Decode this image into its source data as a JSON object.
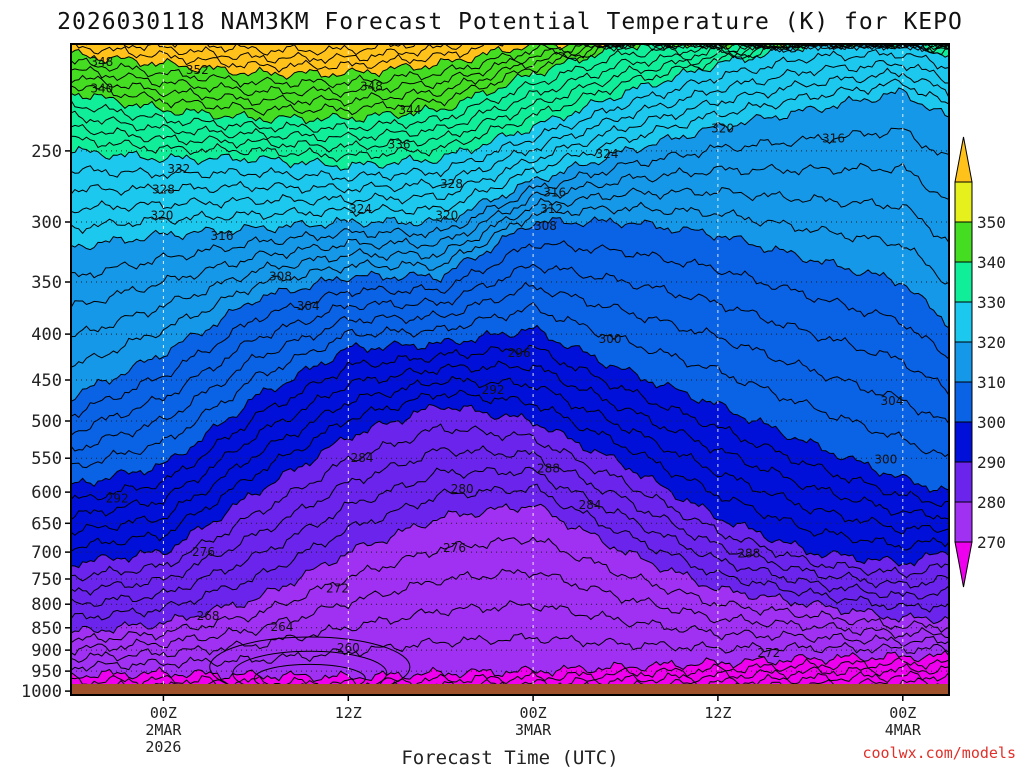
{
  "chart_data": {
    "type": "heatmap",
    "title": "2026030118 NAM3KM Forecast Potential Temperature (K) for KEPO",
    "xlabel": "Forecast Time (UTC)",
    "ylabel": "",
    "credit": "coolwx.com/models",
    "y_axis": {
      "units": "hPa",
      "range": [
        1010,
        190
      ],
      "ticks": [
        1000,
        950,
        900,
        850,
        800,
        750,
        700,
        650,
        600,
        550,
        500,
        450,
        400,
        350,
        300,
        250
      ],
      "tick_labels": [
        "1000",
        "950",
        "900",
        "850",
        "800",
        "750",
        "700",
        "650",
        "600",
        "550",
        "500",
        "450",
        "400",
        "350",
        "300",
        "250"
      ]
    },
    "x_axis": {
      "units": "hours since 2026-03-01 18Z",
      "range": [
        0,
        57
      ],
      "ticks": [
        6,
        18,
        30,
        42,
        54
      ],
      "tick_labels": [
        [
          "00Z",
          "2MAR",
          "2026"
        ],
        [
          "12Z"
        ],
        [
          "00Z",
          "3MAR"
        ],
        [
          "12Z"
        ],
        [
          "00Z",
          "4MAR"
        ]
      ]
    },
    "colorbar": {
      "levels": [
        270,
        280,
        290,
        300,
        310,
        320,
        330,
        340,
        350
      ],
      "labels": [
        "270",
        "280",
        "290",
        "300",
        "310",
        "320",
        "330",
        "340",
        "350"
      ],
      "colors": [
        "#ee00ee",
        "#a030f2",
        "#6a24ec",
        "#0010d8",
        "#0a62e4",
        "#1598e8",
        "#1cc8ee",
        "#10ee9a",
        "#44dd22",
        "#e6f01c",
        "#ffc21a"
      ]
    },
    "contour_interval": 2,
    "profiles": {
      "hours": [
        0,
        6,
        12,
        18,
        24,
        30,
        36,
        42,
        48,
        54,
        57
      ],
      "pressure_of_isentrope": {
        "270": [
          960,
          955,
          960,
          965,
          955,
          950,
          940,
          930,
          920,
          915,
          915
        ],
        "280": [
          860,
          840,
          790,
          700,
          640,
          620,
          700,
          770,
          800,
          830,
          830
        ],
        "290": [
          720,
          700,
          600,
          520,
          480,
          500,
          560,
          640,
          700,
          720,
          700
        ],
        "300": [
          590,
          560,
          470,
          415,
          410,
          395,
          440,
          480,
          530,
          580,
          600
        ],
        "310": [
          470,
          420,
          365,
          345,
          345,
          300,
          300,
          310,
          330,
          350,
          390
        ],
        "320": [
          320,
          310,
          305,
          300,
          300,
          270,
          250,
          235,
          225,
          215,
          230
        ],
        "330": [
          250,
          255,
          255,
          260,
          255,
          235,
          215,
          200,
          190,
          190,
          195
        ],
        "340": [
          215,
          225,
          230,
          230,
          225,
          205,
          190,
          190,
          190,
          190,
          190
        ],
        "350": [
          195,
          200,
          205,
          205,
          200,
          190,
          190,
          190,
          190,
          190,
          190
        ]
      }
    },
    "contour_labels": [
      {
        "text": "348",
        "t": 2.0,
        "p": 199
      },
      {
        "text": "352",
        "t": 8.2,
        "p": 203
      },
      {
        "text": "340",
        "t": 2.0,
        "p": 213
      },
      {
        "text": "348",
        "t": 19.5,
        "p": 212
      },
      {
        "text": "344",
        "t": 22.0,
        "p": 225
      },
      {
        "text": "336",
        "t": 21.3,
        "p": 246
      },
      {
        "text": "332",
        "t": 7.0,
        "p": 262
      },
      {
        "text": "328",
        "t": 6.0,
        "p": 276
      },
      {
        "text": "328",
        "t": 24.7,
        "p": 272
      },
      {
        "text": "324",
        "t": 34.8,
        "p": 252
      },
      {
        "text": "320",
        "t": 42.3,
        "p": 236
      },
      {
        "text": "316",
        "t": 49.5,
        "p": 242
      },
      {
        "text": "316",
        "t": 31.4,
        "p": 278
      },
      {
        "text": "324",
        "t": 18.8,
        "p": 290
      },
      {
        "text": "320",
        "t": 24.4,
        "p": 295
      },
      {
        "text": "312",
        "t": 31.2,
        "p": 290
      },
      {
        "text": "320",
        "t": 5.9,
        "p": 295
      },
      {
        "text": "308",
        "t": 30.8,
        "p": 303
      },
      {
        "text": "316",
        "t": 9.8,
        "p": 311
      },
      {
        "text": "308",
        "t": 13.6,
        "p": 345
      },
      {
        "text": "304",
        "t": 15.4,
        "p": 372
      },
      {
        "text": "300",
        "t": 35.0,
        "p": 405
      },
      {
        "text": "296",
        "t": 29.1,
        "p": 420
      },
      {
        "text": "292",
        "t": 27.4,
        "p": 462
      },
      {
        "text": "304",
        "t": 53.3,
        "p": 475
      },
      {
        "text": "284",
        "t": 18.9,
        "p": 550
      },
      {
        "text": "300",
        "t": 52.9,
        "p": 552
      },
      {
        "text": "288",
        "t": 31.0,
        "p": 565
      },
      {
        "text": "280",
        "t": 25.4,
        "p": 595
      },
      {
        "text": "292",
        "t": 3.0,
        "p": 610
      },
      {
        "text": "284",
        "t": 33.7,
        "p": 620
      },
      {
        "text": "276",
        "t": 24.9,
        "p": 693
      },
      {
        "text": "276",
        "t": 8.6,
        "p": 700
      },
      {
        "text": "288",
        "t": 44.0,
        "p": 702
      },
      {
        "text": "272",
        "t": 17.3,
        "p": 768
      },
      {
        "text": "268",
        "t": 8.9,
        "p": 825
      },
      {
        "text": "264",
        "t": 13.7,
        "p": 848
      },
      {
        "text": "260",
        "t": 18.0,
        "p": 895
      },
      {
        "text": "272",
        "t": 45.3,
        "p": 907
      }
    ]
  }
}
